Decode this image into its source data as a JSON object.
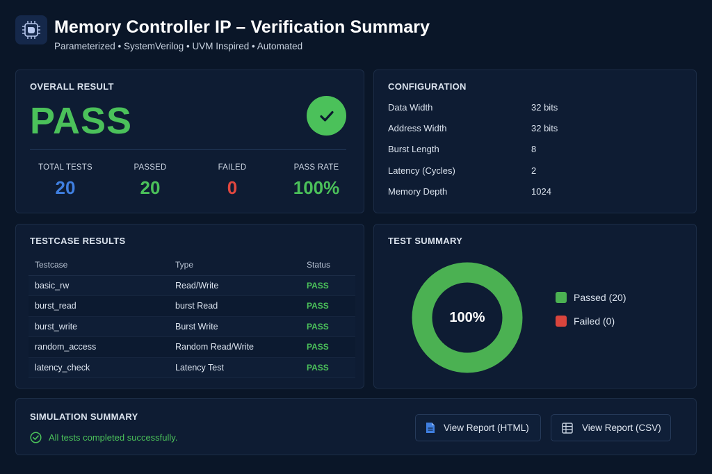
{
  "header": {
    "title": "Memory Controller IP – Verification Summary",
    "subtitle": "Parameterized • SystemVerilog • UVM Inspired • Automated",
    "logo_icon": "chip-icon"
  },
  "overall": {
    "title": "OVERALL RESULT",
    "result": "PASS",
    "stats": [
      {
        "label": "TOTAL TESTS",
        "value": "20",
        "color": "#3f7fe0"
      },
      {
        "label": "PASSED",
        "value": "20",
        "color": "#4bc15a"
      },
      {
        "label": "FAILED",
        "value": "0",
        "color": "#e0473f"
      },
      {
        "label": "PASS RATE",
        "value": "100%",
        "color": "#4bc15a"
      }
    ]
  },
  "configuration": {
    "title": "CONFIGURATION",
    "rows": [
      {
        "label": "Data Width",
        "value": "32 bits"
      },
      {
        "label": "Address Width",
        "value": "32 bits"
      },
      {
        "label": "Burst Length",
        "value": "8"
      },
      {
        "label": "Latency (Cycles)",
        "value": "2"
      },
      {
        "label": "Memory Depth",
        "value": "1024"
      }
    ]
  },
  "testcases": {
    "title": "TESTCASE RESULTS",
    "columns": [
      "Testcase",
      "Type",
      "Status"
    ],
    "rows": [
      [
        "basic_rw",
        "Read/Write",
        "PASS"
      ],
      [
        "burst_read",
        "burst Read",
        "PASS"
      ],
      [
        "burst_write",
        "Burst Write",
        "PASS"
      ],
      [
        "random_access",
        "Random Read/Write",
        "PASS"
      ],
      [
        "latency_check",
        "Latency Test",
        "PASS"
      ]
    ]
  },
  "test_summary": {
    "title": "TEST SUMMARY",
    "center_label": "100%",
    "legend": [
      {
        "label": "Passed (20)",
        "color": "#4bb152"
      },
      {
        "label": "Failed (0)",
        "color": "#d9453d"
      }
    ]
  },
  "simulation": {
    "title": "SIMULATION SUMMARY",
    "message": "All tests completed successfully.",
    "buttons": {
      "html": "View Report (HTML)",
      "csv": "View Report (CSV)"
    }
  },
  "colors": {
    "accent_green": "#4bc15a",
    "accent_blue": "#3f7fe0",
    "accent_red": "#e0473f",
    "background": "#0a1628",
    "card": "#0e1c33"
  }
}
